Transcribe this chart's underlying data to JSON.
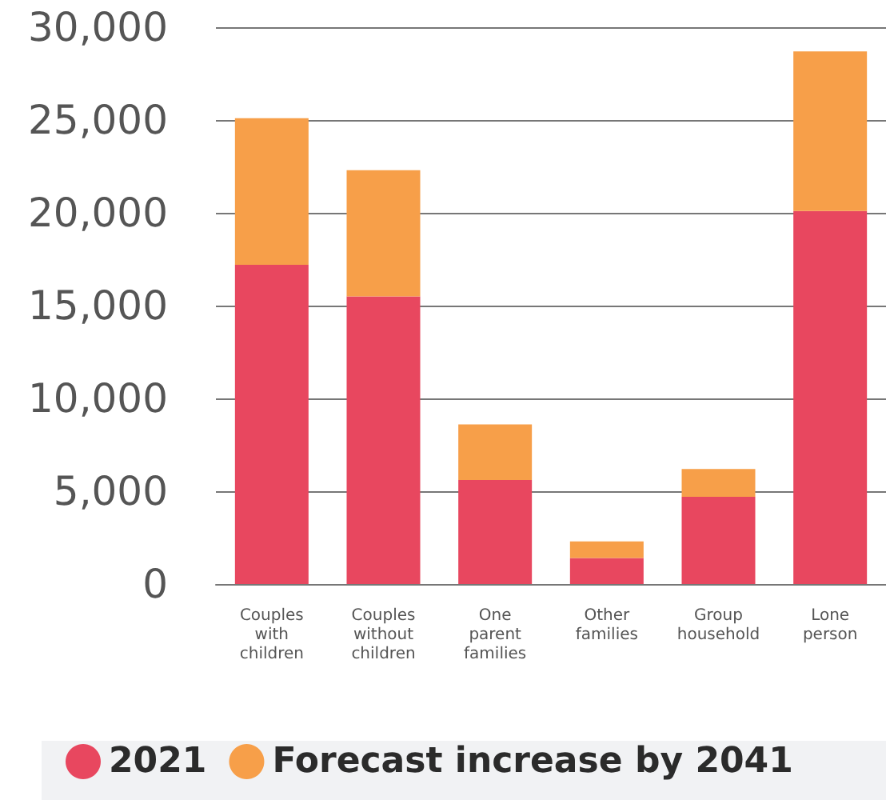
{
  "chart_data": {
    "type": "bar",
    "stacked": true,
    "categories": [
      "Couples with children",
      "Couples without children",
      "One parent families",
      "Other families",
      "Group household",
      "Lone person"
    ],
    "series": [
      {
        "name": "2021",
        "color": "#e8475f",
        "values": [
          17200,
          15500,
          5600,
          1400,
          4700,
          20100
        ]
      },
      {
        "name": "Forecast increase by 2041",
        "color": "#f79f49",
        "values": [
          7900,
          6800,
          3000,
          900,
          1500,
          8600
        ]
      }
    ],
    "ylim": [
      0,
      30000
    ],
    "yticks": [
      0,
      {
        "value": 5000,
        "label": "5,000"
      },
      {
        "value": 10000,
        "label": "10,000"
      },
      {
        "value": 15000,
        "label": "15,000"
      },
      {
        "value": 20000,
        "label": "20,000"
      },
      {
        "value": 25000,
        "label": "25,000"
      },
      {
        "value": 30000,
        "label": "30,000"
      }
    ],
    "grid": "y",
    "legend": "bottom"
  }
}
